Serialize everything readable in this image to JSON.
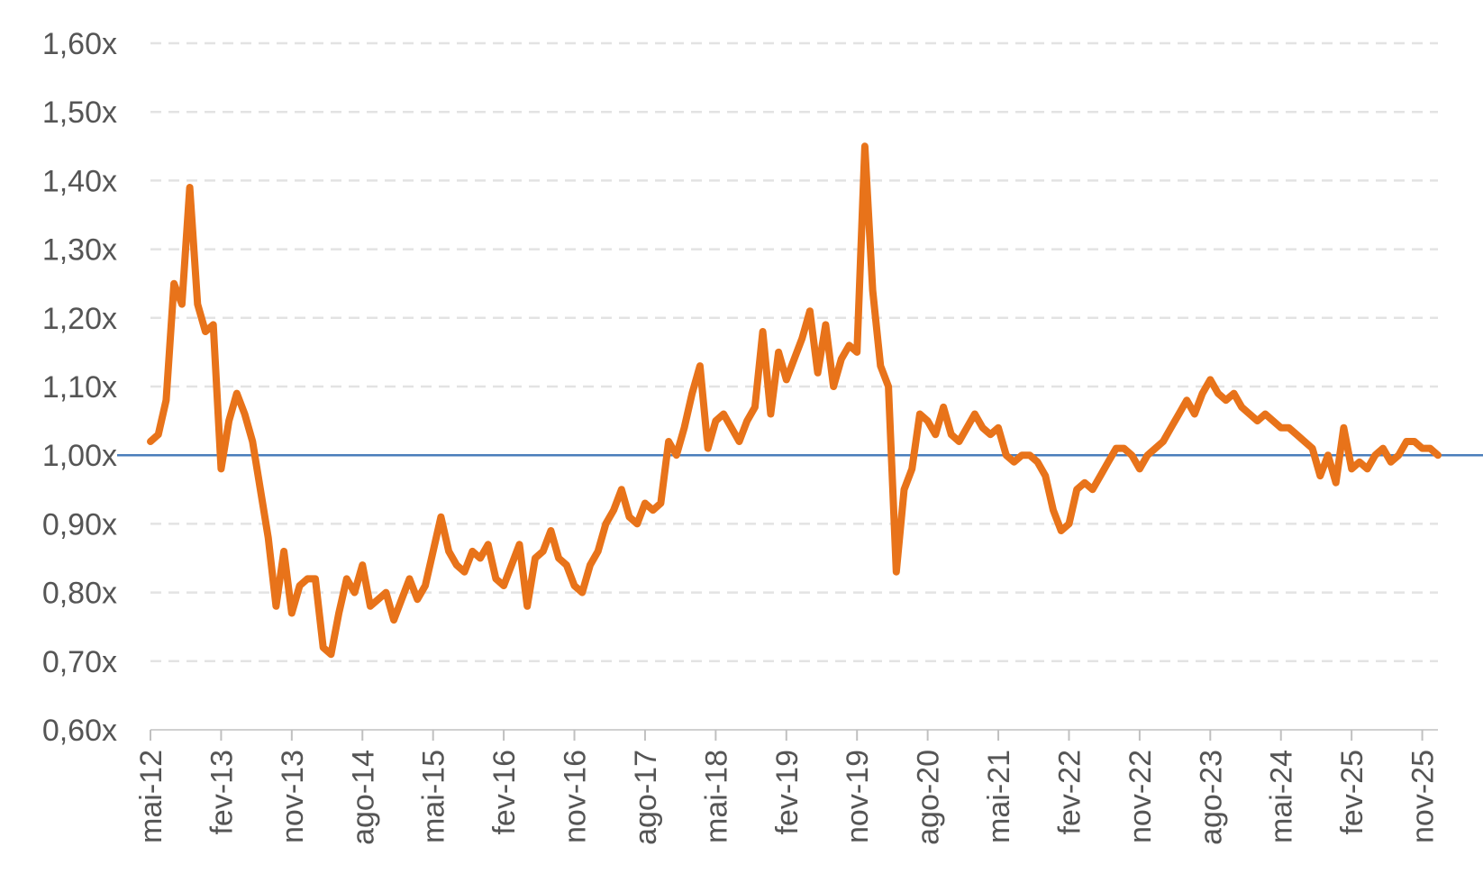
{
  "chart_data": {
    "type": "line",
    "title": "",
    "xlabel": "",
    "ylabel": "",
    "ylim": [
      0.6,
      1.6
    ],
    "xlim": [
      "2012-05",
      "2026-01"
    ],
    "grid": "horizontal dashed",
    "y_ticks": [
      "0,60x",
      "0,70x",
      "0,80x",
      "0,90x",
      "1,00x",
      "1,10x",
      "1,20x",
      "1,30x",
      "1,40x",
      "1,50x",
      "1,60x"
    ],
    "y_tick_values": [
      0.6,
      0.7,
      0.8,
      0.9,
      1.0,
      1.1,
      1.2,
      1.3,
      1.4,
      1.5,
      1.6
    ],
    "x_ticks": [
      "mai-12",
      "fev-13",
      "nov-13",
      "ago-14",
      "mai-15",
      "fev-16",
      "nov-16",
      "ago-17",
      "mai-18",
      "fev-19",
      "nov-19",
      "ago-20",
      "mai-21",
      "fev-22",
      "nov-22",
      "ago-23",
      "mai-24",
      "fev-25",
      "nov-25"
    ],
    "x_tick_dates": [
      "2012-05",
      "2013-02",
      "2013-11",
      "2014-08",
      "2015-05",
      "2016-02",
      "2016-11",
      "2017-08",
      "2018-05",
      "2019-02",
      "2019-11",
      "2020-08",
      "2021-05",
      "2022-02",
      "2022-11",
      "2023-08",
      "2024-05",
      "2025-02",
      "2025-11"
    ],
    "reference_line": {
      "y": 1.0,
      "color": "#4a7ebb"
    },
    "series": [
      {
        "color": "#e8731a",
        "points": [
          [
            "2012-05",
            1.02
          ],
          [
            "2012-06",
            1.03
          ],
          [
            "2012-07",
            1.08
          ],
          [
            "2012-08",
            1.25
          ],
          [
            "2012-09",
            1.22
          ],
          [
            "2012-10",
            1.39
          ],
          [
            "2012-11",
            1.22
          ],
          [
            "2012-12",
            1.18
          ],
          [
            "2013-01",
            1.19
          ],
          [
            "2013-02",
            0.98
          ],
          [
            "2013-03",
            1.05
          ],
          [
            "2013-04",
            1.09
          ],
          [
            "2013-05",
            1.06
          ],
          [
            "2013-06",
            1.02
          ],
          [
            "2013-07",
            0.95
          ],
          [
            "2013-08",
            0.88
          ],
          [
            "2013-09",
            0.78
          ],
          [
            "2013-10",
            0.86
          ],
          [
            "2013-11",
            0.77
          ],
          [
            "2013-12",
            0.81
          ],
          [
            "2014-01",
            0.82
          ],
          [
            "2014-02",
            0.82
          ],
          [
            "2014-03",
            0.72
          ],
          [
            "2014-04",
            0.71
          ],
          [
            "2014-05",
            0.77
          ],
          [
            "2014-06",
            0.82
          ],
          [
            "2014-07",
            0.8
          ],
          [
            "2014-08",
            0.84
          ],
          [
            "2014-09",
            0.78
          ],
          [
            "2014-10",
            0.79
          ],
          [
            "2014-11",
            0.8
          ],
          [
            "2014-12",
            0.76
          ],
          [
            "2015-01",
            0.79
          ],
          [
            "2015-02",
            0.82
          ],
          [
            "2015-03",
            0.79
          ],
          [
            "2015-04",
            0.81
          ],
          [
            "2015-05",
            0.86
          ],
          [
            "2015-06",
            0.91
          ],
          [
            "2015-07",
            0.86
          ],
          [
            "2015-08",
            0.84
          ],
          [
            "2015-09",
            0.83
          ],
          [
            "2015-10",
            0.86
          ],
          [
            "2015-11",
            0.85
          ],
          [
            "2015-12",
            0.87
          ],
          [
            "2016-01",
            0.82
          ],
          [
            "2016-02",
            0.81
          ],
          [
            "2016-03",
            0.84
          ],
          [
            "2016-04",
            0.87
          ],
          [
            "2016-05",
            0.78
          ],
          [
            "2016-06",
            0.85
          ],
          [
            "2016-07",
            0.86
          ],
          [
            "2016-08",
            0.89
          ],
          [
            "2016-09",
            0.85
          ],
          [
            "2016-10",
            0.84
          ],
          [
            "2016-11",
            0.81
          ],
          [
            "2016-12",
            0.8
          ],
          [
            "2017-01",
            0.84
          ],
          [
            "2017-02",
            0.86
          ],
          [
            "2017-03",
            0.9
          ],
          [
            "2017-04",
            0.92
          ],
          [
            "2017-05",
            0.95
          ],
          [
            "2017-06",
            0.91
          ],
          [
            "2017-07",
            0.9
          ],
          [
            "2017-08",
            0.93
          ],
          [
            "2017-09",
            0.92
          ],
          [
            "2017-10",
            0.93
          ],
          [
            "2017-11",
            1.02
          ],
          [
            "2017-12",
            1.0
          ],
          [
            "2018-01",
            1.04
          ],
          [
            "2018-02",
            1.09
          ],
          [
            "2018-03",
            1.13
          ],
          [
            "2018-04",
            1.01
          ],
          [
            "2018-05",
            1.05
          ],
          [
            "2018-06",
            1.06
          ],
          [
            "2018-07",
            1.04
          ],
          [
            "2018-08",
            1.02
          ],
          [
            "2018-09",
            1.05
          ],
          [
            "2018-10",
            1.07
          ],
          [
            "2018-11",
            1.18
          ],
          [
            "2018-12",
            1.06
          ],
          [
            "2019-01",
            1.15
          ],
          [
            "2019-02",
            1.11
          ],
          [
            "2019-03",
            1.14
          ],
          [
            "2019-04",
            1.17
          ],
          [
            "2019-05",
            1.21
          ],
          [
            "2019-06",
            1.12
          ],
          [
            "2019-07",
            1.19
          ],
          [
            "2019-08",
            1.1
          ],
          [
            "2019-09",
            1.14
          ],
          [
            "2019-10",
            1.16
          ],
          [
            "2019-11",
            1.15
          ],
          [
            "2019-12",
            1.45
          ],
          [
            "2020-01",
            1.24
          ],
          [
            "2020-02",
            1.13
          ],
          [
            "2020-03",
            1.1
          ],
          [
            "2020-04",
            0.83
          ],
          [
            "2020-05",
            0.95
          ],
          [
            "2020-06",
            0.98
          ],
          [
            "2020-07",
            1.06
          ],
          [
            "2020-08",
            1.05
          ],
          [
            "2020-09",
            1.03
          ],
          [
            "2020-10",
            1.07
          ],
          [
            "2020-11",
            1.03
          ],
          [
            "2020-12",
            1.02
          ],
          [
            "2021-01",
            1.04
          ],
          [
            "2021-02",
            1.06
          ],
          [
            "2021-03",
            1.04
          ],
          [
            "2021-04",
            1.03
          ],
          [
            "2021-05",
            1.04
          ],
          [
            "2021-06",
            1.0
          ],
          [
            "2021-07",
            0.99
          ],
          [
            "2021-08",
            1.0
          ],
          [
            "2021-09",
            1.0
          ],
          [
            "2021-10",
            0.99
          ],
          [
            "2021-11",
            0.97
          ],
          [
            "2021-12",
            0.92
          ],
          [
            "2022-01",
            0.89
          ],
          [
            "2022-02",
            0.9
          ],
          [
            "2022-03",
            0.95
          ],
          [
            "2022-04",
            0.96
          ],
          [
            "2022-05",
            0.95
          ],
          [
            "2022-06",
            0.97
          ],
          [
            "2022-07",
            0.99
          ],
          [
            "2022-08",
            1.01
          ],
          [
            "2022-09",
            1.01
          ],
          [
            "2022-10",
            1.0
          ],
          [
            "2022-11",
            0.98
          ],
          [
            "2022-12",
            1.0
          ],
          [
            "2023-01",
            1.01
          ],
          [
            "2023-02",
            1.02
          ],
          [
            "2023-03",
            1.04
          ],
          [
            "2023-04",
            1.06
          ],
          [
            "2023-05",
            1.08
          ],
          [
            "2023-06",
            1.06
          ],
          [
            "2023-07",
            1.09
          ],
          [
            "2023-08",
            1.11
          ],
          [
            "2023-09",
            1.09
          ],
          [
            "2023-10",
            1.08
          ],
          [
            "2023-11",
            1.09
          ],
          [
            "2023-12",
            1.07
          ],
          [
            "2024-01",
            1.06
          ],
          [
            "2024-02",
            1.05
          ],
          [
            "2024-03",
            1.06
          ],
          [
            "2024-04",
            1.05
          ],
          [
            "2024-05",
            1.04
          ],
          [
            "2024-06",
            1.04
          ],
          [
            "2024-07",
            1.03
          ],
          [
            "2024-08",
            1.02
          ],
          [
            "2024-09",
            1.01
          ],
          [
            "2024-10",
            0.97
          ],
          [
            "2024-11",
            1.0
          ],
          [
            "2024-12",
            0.96
          ],
          [
            "2025-01",
            1.04
          ],
          [
            "2025-02",
            0.98
          ],
          [
            "2025-03",
            0.99
          ],
          [
            "2025-04",
            0.98
          ],
          [
            "2025-05",
            1.0
          ],
          [
            "2025-06",
            1.01
          ],
          [
            "2025-07",
            0.99
          ],
          [
            "2025-08",
            1.0
          ],
          [
            "2025-09",
            1.02
          ],
          [
            "2025-10",
            1.02
          ],
          [
            "2025-11",
            1.01
          ],
          [
            "2025-12",
            1.01
          ],
          [
            "2026-01",
            1.0
          ]
        ]
      }
    ]
  }
}
